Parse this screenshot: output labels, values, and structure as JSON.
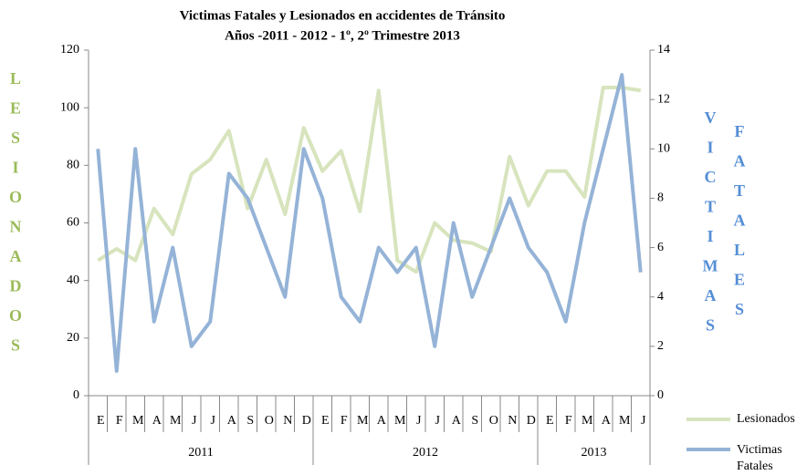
{
  "chart_data": {
    "type": "line",
    "title": "Victimas Fatales y Lesionados en accidentes de Tránsito",
    "subtitle": "Años -2011 - 2012 - 1º, 2º  Trimestre 2013",
    "y_label": "LESIONADOS",
    "y2_label": [
      "VICTIMAS",
      "FATALES"
    ],
    "categories": [
      "E",
      "F",
      "M",
      "A",
      "M",
      "J",
      "J",
      "A",
      "S",
      "O",
      "N",
      "D",
      "E",
      "F",
      "M",
      "A",
      "M",
      "J",
      "J",
      "A",
      "S",
      "O",
      "N",
      "D",
      "E",
      "F",
      "M",
      "A",
      "M",
      "J"
    ],
    "x_groups": [
      {
        "label": "2011",
        "count": 12
      },
      {
        "label": "2012",
        "count": 12
      },
      {
        "label": "2013",
        "count": 6
      }
    ],
    "series": [
      {
        "name": "Lesionados",
        "color": "#d7e4bd",
        "values": [
          47,
          51,
          47,
          65,
          56,
          77,
          82,
          92,
          65,
          82,
          63,
          93,
          78,
          85,
          64,
          106,
          47,
          43,
          60,
          54,
          53,
          50,
          83,
          66,
          78,
          78,
          69,
          107,
          107,
          106
        ]
      },
      {
        "name": "Victimas Fatales",
        "color": "#95b3d7",
        "axis": "y2",
        "values": [
          10,
          1,
          10,
          3,
          6,
          2,
          3,
          9,
          8,
          6,
          4,
          10,
          8,
          4,
          3,
          6,
          5,
          6,
          2,
          7,
          4,
          6,
          8,
          6,
          5,
          3,
          7,
          10,
          13,
          5
        ]
      }
    ],
    "ylim": [
      0,
      120
    ],
    "yticks": [
      0,
      20,
      40,
      60,
      80,
      100,
      120
    ],
    "y2lim": [
      0,
      14
    ],
    "y2ticks": [
      0,
      2,
      4,
      6,
      8,
      10,
      12,
      14
    ]
  }
}
